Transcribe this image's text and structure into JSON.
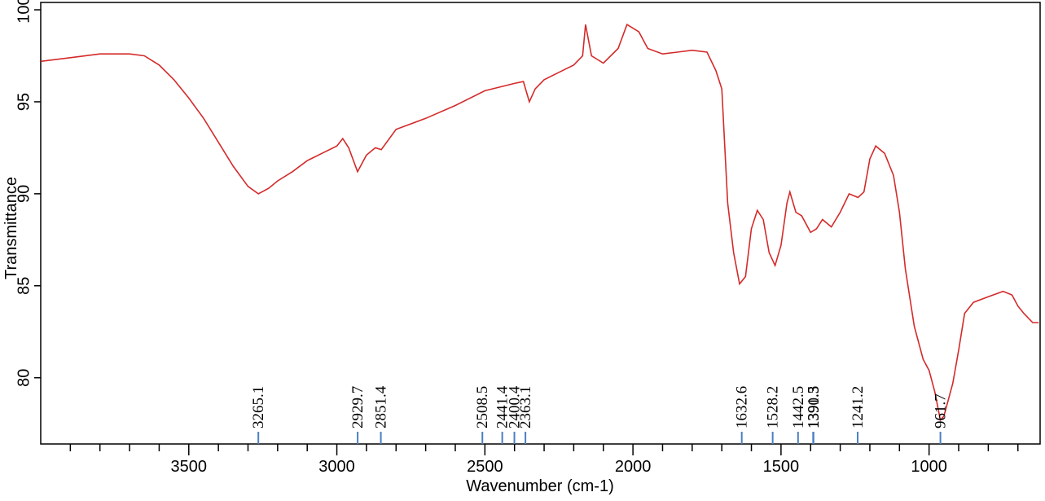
{
  "chart_data": {
    "type": "line",
    "x_label": "Wavenumber (cm-1)",
    "y_label": "Transmittance",
    "x": [
      4000,
      3900,
      3800,
      3700,
      3650,
      3600,
      3550,
      3500,
      3450,
      3400,
      3350,
      3300,
      3265,
      3230,
      3200,
      3150,
      3100,
      3050,
      3000,
      2980,
      2960,
      2930,
      2900,
      2870,
      2850,
      2800,
      2700,
      2600,
      2500,
      2450,
      2400,
      2370,
      2350,
      2330,
      2300,
      2250,
      2200,
      2170,
      2160,
      2140,
      2100,
      2050,
      2020,
      2000,
      1980,
      1950,
      1900,
      1850,
      1800,
      1750,
      1720,
      1700,
      1690,
      1680,
      1660,
      1640,
      1620,
      1600,
      1580,
      1560,
      1540,
      1520,
      1500,
      1480,
      1470,
      1450,
      1430,
      1400,
      1380,
      1360,
      1330,
      1300,
      1270,
      1240,
      1220,
      1200,
      1180,
      1150,
      1120,
      1100,
      1080,
      1050,
      1020,
      1000,
      980,
      962,
      950,
      920,
      900,
      880,
      850,
      800,
      750,
      720,
      700,
      680,
      650,
      630
    ],
    "values": [
      97.2,
      97.4,
      97.6,
      97.6,
      97.5,
      97.0,
      96.2,
      95.2,
      94.1,
      92.8,
      91.5,
      90.4,
      90.0,
      90.3,
      90.7,
      91.2,
      91.8,
      92.2,
      92.6,
      93.0,
      92.5,
      91.2,
      92.1,
      92.5,
      92.4,
      93.5,
      94.1,
      94.8,
      95.6,
      95.8,
      96.0,
      96.1,
      95.0,
      95.7,
      96.2,
      96.6,
      97.0,
      97.5,
      99.2,
      97.5,
      97.1,
      97.9,
      99.2,
      99.0,
      98.8,
      97.9,
      97.6,
      97.7,
      97.8,
      97.7,
      96.7,
      95.7,
      92.6,
      89.5,
      86.8,
      85.1,
      85.5,
      88.1,
      89.1,
      88.6,
      86.8,
      86.1,
      87.2,
      89.5,
      90.1,
      89.0,
      88.8,
      87.9,
      88.1,
      88.6,
      88.2,
      89.0,
      90.0,
      89.8,
      90.1,
      91.9,
      92.6,
      92.2,
      91.0,
      89.0,
      85.9,
      82.8,
      81.0,
      80.4,
      79.2,
      77.7,
      77.9,
      79.7,
      81.5,
      83.5,
      84.1,
      84.4,
      84.7,
      84.5,
      83.9,
      83.5,
      83.0,
      83.0
    ],
    "color": "#d42a2a",
    "xlim": [
      4000,
      625
    ],
    "xticks": [
      3500,
      3000,
      2500,
      2000,
      1500,
      1000
    ],
    "xminorticks": [
      3900,
      3800,
      3700,
      3600,
      3400,
      3300,
      3200,
      3100,
      2900,
      2800,
      2700,
      2600,
      2400,
      2300,
      2200,
      2100,
      1900,
      1800,
      1700,
      1600,
      1400,
      1300,
      1200,
      1100,
      900,
      800,
      700
    ],
    "ylim": [
      76.4,
      100.4
    ],
    "yticks": [
      80,
      85,
      90,
      95,
      100
    ],
    "peaks": [
      3265.1,
      2929.7,
      2851.4,
      2508.5,
      2441.4,
      2400.4,
      2363.1,
      1632.6,
      1528.2,
      1442.5,
      1391.5,
      1390.3,
      1241.2,
      961.7
    ],
    "peak_color": "#4a7fc1"
  }
}
